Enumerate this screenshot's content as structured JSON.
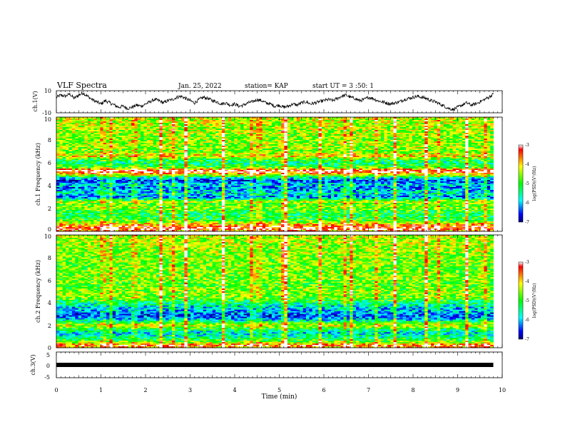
{
  "header": {
    "title": "VLF Spectra",
    "date": "Jan. 25, 2022",
    "station": "station= KAP",
    "start": "start UT =  3 :50: 1"
  },
  "chart_data": [
    {
      "type": "line",
      "name": "ch1-waveform",
      "ylabel": "ch.1(V)",
      "ylim": [
        -10,
        10
      ],
      "ytick_labels": [
        "10",
        "-10"
      ],
      "xlim": [
        0,
        10
      ],
      "x": [
        0,
        0.1,
        0.2,
        0.3,
        0.4,
        0.5,
        0.6,
        0.7,
        0.8,
        0.9,
        1.0,
        1.1,
        1.2,
        1.3,
        1.4,
        1.5,
        1.6,
        1.7,
        1.8,
        1.9,
        2.0,
        2.1,
        2.2,
        2.3,
        2.4,
        2.5,
        2.6,
        2.7,
        2.8,
        2.9,
        3.0,
        3.1,
        3.2,
        3.3,
        3.4,
        3.5,
        3.6,
        3.7,
        3.8,
        3.9,
        4.0,
        4.1,
        4.2,
        4.3,
        4.4,
        4.5,
        4.6,
        4.7,
        4.8,
        4.9,
        5.0,
        5.1,
        5.2,
        5.3,
        5.4,
        5.5,
        5.6,
        5.7,
        5.8,
        5.9,
        6.0,
        6.1,
        6.2,
        6.3,
        6.4,
        6.5,
        6.6,
        6.7,
        6.8,
        6.9,
        7.0,
        7.1,
        7.2,
        7.3,
        7.4,
        7.5,
        7.6,
        7.7,
        7.8,
        7.9,
        8.0,
        8.1,
        8.2,
        8.3,
        8.4,
        8.5,
        8.6,
        8.7,
        8.8,
        8.9,
        9.0,
        9.1,
        9.2,
        9.3,
        9.4,
        9.5,
        9.6,
        9.7,
        9.8
      ],
      "y": [
        4,
        6,
        5,
        7,
        3,
        6,
        8,
        5,
        2,
        0,
        -2,
        1,
        -1,
        -3,
        -5,
        -4,
        -6,
        -5,
        -3,
        -4,
        -2,
        0,
        2,
        1,
        -1,
        1,
        2,
        4,
        5,
        3,
        1,
        -1,
        2,
        4,
        3,
        1,
        0,
        -2,
        -1,
        -3,
        -2,
        -4,
        -3,
        -1,
        0,
        2,
        1,
        -1,
        -2,
        -4,
        -3,
        -5,
        -4,
        -2,
        -3,
        -1,
        0,
        -2,
        -1,
        0,
        1,
        2,
        1,
        3,
        5,
        6,
        4,
        3,
        1,
        2,
        4,
        3,
        1,
        0,
        -1,
        -2,
        -1,
        0,
        2,
        3,
        4,
        5,
        4,
        3,
        1,
        0,
        -2,
        -4,
        -6,
        -7,
        -5,
        -3,
        -1,
        -3,
        -2,
        0,
        2,
        4,
        7
      ]
    },
    {
      "type": "heatmap",
      "name": "ch1-spectrogram",
      "ylabel": "ch.1 Frequency (kHz)",
      "ylim": [
        0,
        10
      ],
      "ytick_labels": [
        "0",
        "2",
        "4",
        "6",
        "8",
        "10"
      ],
      "xlim": [
        0,
        10
      ],
      "colorbar_label": "log(PSD)(V²/Hz)",
      "colorbar_range": [
        -7,
        -3
      ],
      "colorbar_ticks": [
        "-3",
        "-4",
        "-5",
        "-6",
        "-7"
      ],
      "freq_profile": [
        [
          0.0,
          -4.0
        ],
        [
          0.2,
          -3.2
        ],
        [
          0.5,
          -3.6
        ],
        [
          1.0,
          -5.0
        ],
        [
          1.6,
          -5.2
        ],
        [
          2.0,
          -4.6
        ],
        [
          2.4,
          -4.8
        ],
        [
          2.6,
          -4.3
        ],
        [
          3.0,
          -6.3
        ],
        [
          3.3,
          -5.6
        ],
        [
          3.8,
          -6.2
        ],
        [
          4.1,
          -5.8
        ],
        [
          4.4,
          -6.5
        ],
        [
          4.7,
          -5.6
        ],
        [
          5.0,
          -4.0
        ],
        [
          5.3,
          -3.0
        ],
        [
          5.6,
          -4.9
        ],
        [
          6.0,
          -5.4
        ],
        [
          6.3,
          -5.0
        ],
        [
          6.6,
          -4.0
        ],
        [
          7.0,
          -4.7
        ],
        [
          7.4,
          -4.5
        ],
        [
          8.0,
          -4.6
        ],
        [
          8.8,
          -4.5
        ],
        [
          9.4,
          -4.4
        ],
        [
          10.0,
          -4.3
        ]
      ],
      "impulse_times": [
        1.05,
        1.2,
        1.75,
        2.35,
        2.6,
        2.9,
        3.75,
        4.4,
        4.55,
        5.1,
        5.15,
        5.9,
        6.45,
        6.6,
        7.2,
        7.6,
        8.3,
        8.55,
        9.2,
        9.6
      ]
    },
    {
      "type": "heatmap",
      "name": "ch2-spectrogram",
      "ylabel": "ch.2 Frequency (kHz)",
      "ylim": [
        0,
        10
      ],
      "ytick_labels": [
        "0",
        "2",
        "4",
        "6",
        "8",
        "10"
      ],
      "xlim": [
        0,
        10
      ],
      "colorbar_label": "log(PSD)(V²/Hz)",
      "colorbar_range": [
        -7,
        -3
      ],
      "colorbar_ticks": [
        "-3",
        "-4",
        "-5",
        "-6",
        "-7"
      ],
      "freq_profile": [
        [
          0.0,
          -4.0
        ],
        [
          0.2,
          -3.4
        ],
        [
          0.5,
          -4.6
        ],
        [
          0.9,
          -5.4
        ],
        [
          1.3,
          -5.8
        ],
        [
          1.7,
          -5.0
        ],
        [
          2.0,
          -4.2
        ],
        [
          2.4,
          -5.6
        ],
        [
          2.8,
          -6.4
        ],
        [
          3.2,
          -6.0
        ],
        [
          3.6,
          -5.8
        ],
        [
          4.0,
          -5.3
        ],
        [
          4.4,
          -4.7
        ],
        [
          5.0,
          -4.6
        ],
        [
          5.6,
          -4.8
        ],
        [
          6.2,
          -4.6
        ],
        [
          7.0,
          -4.7
        ],
        [
          8.0,
          -4.6
        ],
        [
          9.0,
          -4.5
        ],
        [
          10.0,
          -4.4
        ]
      ],
      "impulse_times": [
        1.05,
        1.2,
        1.75,
        2.35,
        2.6,
        2.9,
        3.75,
        4.4,
        4.55,
        5.1,
        5.15,
        5.9,
        6.45,
        6.6,
        7.2,
        7.6,
        8.3,
        8.55,
        9.2,
        9.6
      ]
    },
    {
      "type": "line",
      "name": "ch3-waveform",
      "ylabel": "ch.3(V)",
      "ylim": [
        -5,
        5
      ],
      "ytick_labels": [
        "5",
        "0",
        "-5"
      ],
      "xlim": [
        0,
        10
      ],
      "x": [
        0,
        9.8
      ],
      "y": [
        0,
        0
      ]
    }
  ],
  "xaxis": {
    "label": "Time (min)",
    "ticks": [
      "0",
      "1",
      "2",
      "3",
      "4",
      "5",
      "6",
      "7",
      "8",
      "9",
      "10"
    ]
  }
}
